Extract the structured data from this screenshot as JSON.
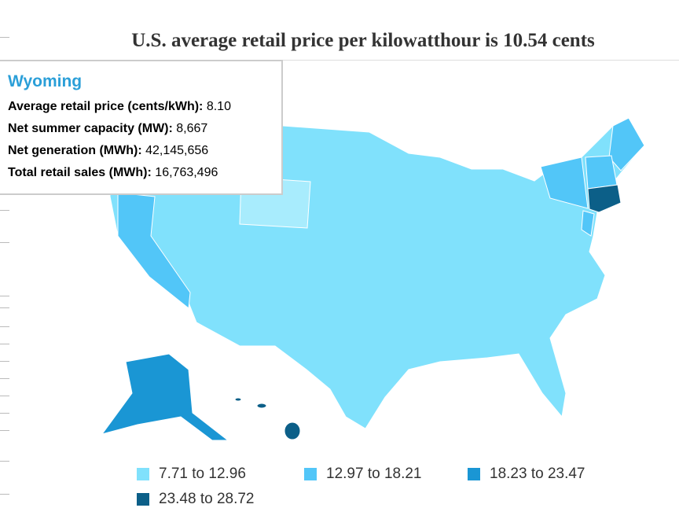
{
  "title": "U.S. average retail price per kilowatthour is 10.54 cents",
  "tooltip": {
    "state": "Wyoming",
    "rows": [
      {
        "label": "Average retail price (cents/kWh):",
        "value": "8.10"
      },
      {
        "label": "Net summer capacity (MW):",
        "value": "8,667"
      },
      {
        "label": "Net generation (MWh):",
        "value": "42,145,656"
      },
      {
        "label": "Total retail sales (MWh):",
        "value": "16,763,496"
      }
    ]
  },
  "legend": [
    {
      "label": "7.71 to 12.96",
      "color": "#80e1fc"
    },
    {
      "label": "12.97 to 18.21",
      "color": "#52c6f8"
    },
    {
      "label": "18.23 to 23.47",
      "color": "#1a96d4"
    },
    {
      "label": "23.48 to 28.72",
      "color": "#0c5f88"
    }
  ],
  "highlight_color": "#a8ecfd"
}
